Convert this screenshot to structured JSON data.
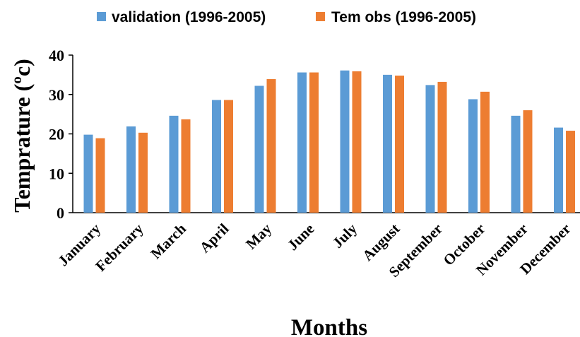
{
  "chart_data": {
    "type": "bar",
    "xlabel": "Months",
    "ylabel": "Temprature  (ºc)",
    "ylim": [
      0,
      40
    ],
    "yticks": [
      0,
      10,
      20,
      30,
      40
    ],
    "grid": false,
    "legend_position": "top",
    "categories": [
      "January",
      "February",
      "March",
      "April",
      "May",
      "June",
      "July",
      "August",
      "September",
      "October",
      "November",
      "December"
    ],
    "series": [
      {
        "name": "validation (1996-2005)",
        "color": "#5B9BD5",
        "values": [
          19.8,
          21.9,
          24.6,
          28.6,
          32.2,
          35.6,
          36.1,
          35.0,
          32.4,
          28.8,
          24.6,
          21.6
        ]
      },
      {
        "name": "Tem obs (1996-2005)",
        "color": "#ED7D31",
        "values": [
          18.9,
          20.3,
          23.7,
          28.6,
          33.9,
          35.6,
          35.9,
          34.8,
          33.2,
          30.7,
          26.0,
          20.8
        ]
      }
    ]
  }
}
